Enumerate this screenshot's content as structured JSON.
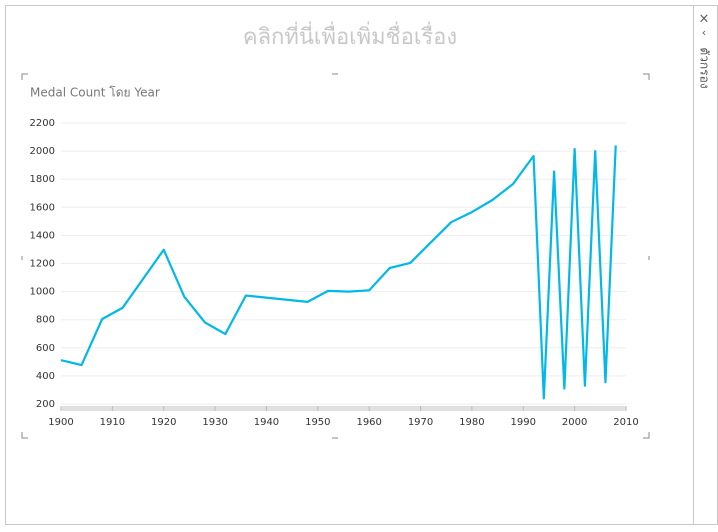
{
  "page_title": "คลิกที่นี่เพื่อเพิ่มชื่อเรื่อง",
  "filter_pane": {
    "label": "ตัวกรอง"
  },
  "chart_data": {
    "type": "line",
    "title": "Medal Count โดย Year",
    "x": [
      1900,
      1904,
      1908,
      1912,
      1920,
      1924,
      1928,
      1932,
      1936,
      1948,
      1952,
      1956,
      1960,
      1964,
      1968,
      1972,
      1976,
      1980,
      1984,
      1988,
      1992,
      1994,
      1996,
      1998,
      2000,
      2002,
      2004,
      2006,
      2008
    ],
    "series": [
      {
        "name": "Medal Count",
        "color": "#01b8e8",
        "values": [
          512,
          477,
          804,
          885,
          1298,
          964,
          781,
          698,
          972,
          927,
          1005,
          1000,
          1009,
          1168,
          1204,
          1350,
          1495,
          1566,
          1652,
          1766,
          1965,
          240,
          1855,
          310,
          2015,
          330,
          2000,
          355,
          2040
        ]
      }
    ],
    "xlim": [
      1900,
      2010
    ],
    "xticks": [
      1900,
      1910,
      1920,
      1930,
      1940,
      1950,
      1960,
      1970,
      1980,
      1990,
      2000,
      2010
    ],
    "ylim": [
      200,
      2200
    ],
    "yticks": [
      200,
      400,
      600,
      800,
      1000,
      1200,
      1400,
      1600,
      1800,
      2000,
      2200
    ],
    "grid": true
  }
}
